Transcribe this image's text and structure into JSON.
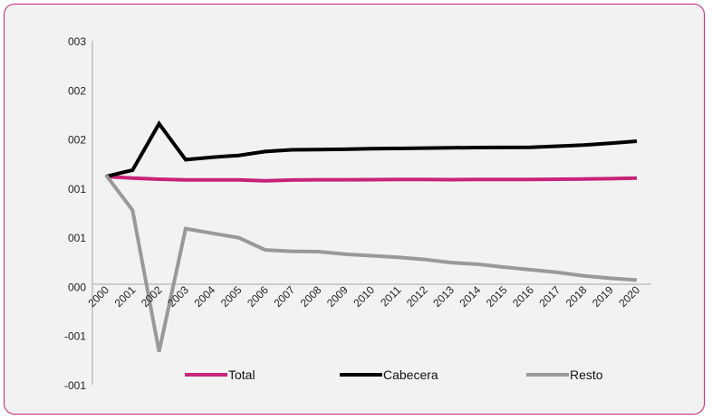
{
  "chart_data": {
    "type": "line",
    "title": "",
    "xlabel": "",
    "ylabel": "",
    "x": [
      "2000",
      "2001",
      "2002",
      "2003",
      "2004",
      "2005",
      "2006",
      "2007",
      "2008",
      "2009",
      "2010",
      "2011",
      "2012",
      "2013",
      "2014",
      "2015",
      "2016",
      "2017",
      "2018",
      "2019",
      "2020"
    ],
    "y_tick_labels": [
      "003",
      "002",
      "002",
      "001",
      "001",
      "000",
      "-001",
      "-001"
    ],
    "grid": false,
    "legend_position": "bottom",
    "series": [
      {
        "name": "Total",
        "color": "#c8237a",
        "values": [
          1.02,
          1.008,
          1.0,
          0.995,
          0.995,
          0.995,
          0.989,
          0.994,
          0.996,
          0.996,
          0.997,
          0.998,
          0.998,
          0.997,
          0.998,
          0.998,
          0.998,
          1.0,
          1.001,
          1.004,
          1.008
        ]
      },
      {
        "name": "Cabecera",
        "color": "#000000",
        "values": [
          1.02,
          1.066,
          1.403,
          1.142,
          1.16,
          1.173,
          1.201,
          1.214,
          1.216,
          1.218,
          1.222,
          1.224,
          1.226,
          1.228,
          1.23,
          1.231,
          1.232,
          1.24,
          1.248,
          1.261,
          1.276
        ]
      },
      {
        "name": "Resto",
        "color": "#999999",
        "values": [
          1.03,
          0.775,
          -0.253,
          0.641,
          0.607,
          0.575,
          0.486,
          0.476,
          0.474,
          0.455,
          0.444,
          0.432,
          0.417,
          0.394,
          0.382,
          0.361,
          0.342,
          0.323,
          0.298,
          0.28,
          0.267
        ]
      }
    ]
  }
}
